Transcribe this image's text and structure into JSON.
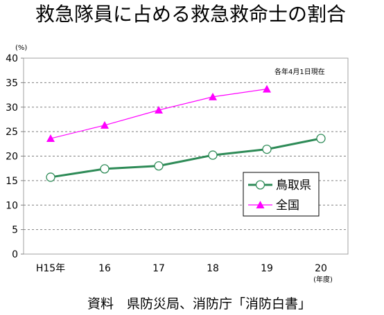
{
  "chart_data": {
    "type": "line",
    "title": "救急隊員に占める救急救命士の割合",
    "ylabel": "(%)",
    "xlabel": "(年度)",
    "annotation": "各年4月1日現在",
    "source": "資料　県防災局、消防庁「消防白書」",
    "categories": [
      "H15年",
      "16",
      "17",
      "18",
      "19",
      "20"
    ],
    "ylim": [
      0,
      40
    ],
    "yticks": [
      0,
      5,
      10,
      15,
      20,
      25,
      30,
      35,
      40
    ],
    "grid": true,
    "legend_position": "lower-right",
    "series": [
      {
        "name": "鳥取県",
        "values": [
          15.7,
          17.4,
          18.0,
          20.2,
          21.4,
          23.6
        ],
        "color": "#2E8B57",
        "marker": "circle"
      },
      {
        "name": "全国",
        "values": [
          23.6,
          26.3,
          29.4,
          32.1,
          33.7,
          null
        ],
        "color": "#FF00FF",
        "marker": "triangle"
      }
    ]
  }
}
